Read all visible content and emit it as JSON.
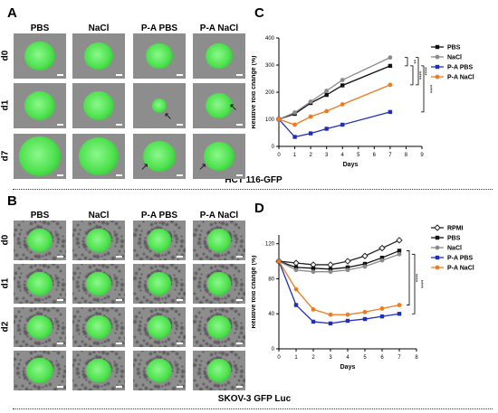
{
  "panel_a": {
    "letter": "A",
    "columns": [
      "PBS",
      "NaCl",
      "P-A PBS",
      "P-A NaCl"
    ],
    "rows": [
      "d0",
      "d1",
      "d7"
    ],
    "caption": "HCT 116-GFP"
  },
  "panel_b": {
    "letter": "B",
    "columns": [
      "PBS",
      "NaCl",
      "P-A PBS",
      "P-A NaCl"
    ],
    "rows": [
      "d0",
      "d1",
      "d2",
      ""
    ],
    "caption": "SKOV-3 GFP Luc"
  },
  "chart_data": [
    {
      "panel": "C",
      "type": "line",
      "xlabel": "Days",
      "ylabel": "Relative fold change (%)",
      "xlim": [
        0,
        9
      ],
      "ylim": [
        0,
        400
      ],
      "xticks": [
        "0",
        "1",
        "2",
        "3",
        "4",
        "5",
        "6",
        "7",
        "8",
        "9"
      ],
      "yticks": [
        "0",
        "100",
        "200",
        "300",
        "400"
      ],
      "x": [
        0,
        1,
        2,
        3,
        4,
        7
      ],
      "series": [
        {
          "name": "PBS",
          "color": "#111111",
          "marker": "square",
          "values": [
            100,
            120,
            160,
            190,
            225,
            297
          ]
        },
        {
          "name": "NaCl",
          "color": "#8a8a8a",
          "marker": "circle",
          "values": [
            100,
            125,
            165,
            205,
            245,
            328
          ]
        },
        {
          "name": "P-A PBS",
          "color": "#1f2fb8",
          "marker": "square",
          "values": [
            100,
            35,
            48,
            65,
            80,
            127
          ]
        },
        {
          "name": "P-A NaCl",
          "color": "#f07a1e",
          "marker": "circle",
          "values": [
            100,
            80,
            110,
            130,
            155,
            227
          ]
        }
      ],
      "significance": [
        "**",
        "****",
        "****",
        "****"
      ],
      "legend": "right"
    },
    {
      "panel": "D",
      "type": "line",
      "xlabel": "Days",
      "ylabel": "Relative fold change (%)",
      "xlim": [
        0,
        8
      ],
      "ylim": [
        0,
        130
      ],
      "xticks": [
        "0",
        "1",
        "2",
        "3",
        "4",
        "5",
        "6",
        "7",
        "8"
      ],
      "yticks": [
        "0",
        "40",
        "80",
        "120"
      ],
      "x": [
        0,
        1,
        2,
        3,
        4,
        5,
        6,
        7
      ],
      "series": [
        {
          "name": "RPMI",
          "color": "#222222",
          "marker": "open-diamond",
          "values": [
            100,
            98,
            96,
            96,
            100,
            106,
            115,
            124
          ]
        },
        {
          "name": "PBS",
          "color": "#111111",
          "marker": "square",
          "values": [
            100,
            93,
            92,
            91,
            93,
            97,
            104,
            112
          ]
        },
        {
          "name": "NaCl",
          "color": "#8a8a8a",
          "marker": "circle",
          "values": [
            100,
            90,
            88,
            88,
            90,
            94,
            101,
            108
          ]
        },
        {
          "name": "P-A PBS",
          "color": "#1f2fb8",
          "marker": "square",
          "values": [
            100,
            50,
            31,
            29,
            32,
            34,
            37,
            40
          ]
        },
        {
          "name": "P-A NaCl",
          "color": "#f07a1e",
          "marker": "circle",
          "values": [
            100,
            68,
            45,
            39,
            39,
            42,
            46,
            50
          ]
        }
      ],
      "significance": [
        "****",
        "****"
      ],
      "legend": "right"
    }
  ]
}
